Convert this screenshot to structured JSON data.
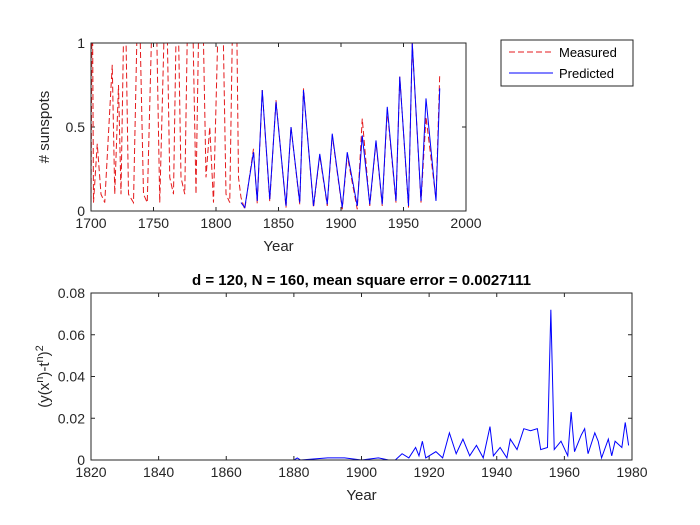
{
  "chart_data": [
    {
      "type": "line",
      "xlabel": "Year",
      "ylabel": [
        {
          "text": "# sunspots"
        }
      ],
      "xlim": [
        1700,
        2000
      ],
      "xticks": [
        1700,
        1750,
        1800,
        1850,
        1900,
        1950,
        2000
      ],
      "ylim": [
        0,
        1
      ],
      "yticks": [
        0,
        0.5,
        1
      ],
      "legend": "outside-top-right",
      "series": [
        {
          "name": "Measured",
          "color": "#e41a1c",
          "dash": true,
          "x": [
            1700,
            1701,
            1702,
            1705,
            1708,
            1711,
            1715,
            1717,
            1719,
            1722,
            1724,
            1727,
            1730,
            1734,
            1738,
            1742,
            1745,
            1750,
            1752,
            1755,
            1760,
            1763,
            1766,
            1769,
            1772,
            1775,
            1778,
            1781,
            1784,
            1787,
            1789,
            1792,
            1795,
            1798,
            1803,
            1805,
            1808,
            1811,
            1814,
            1816,
            1818,
            1820,
            1823,
            1830,
            1833,
            1837,
            1843,
            1848,
            1856,
            1860,
            1867,
            1870,
            1878,
            1883,
            1889,
            1893,
            1901,
            1905,
            1913,
            1917,
            1923,
            1928,
            1933,
            1937,
            1944,
            1947,
            1954,
            1957,
            1964,
            1968,
            1976,
            1979
          ],
          "values": [
            0,
            1.5,
            0.05,
            0.4,
            0.1,
            0.05,
            0.6,
            0.87,
            0.1,
            0.75,
            0.1,
            1.5,
            0.1,
            0.05,
            1.5,
            0.1,
            0.05,
            1.5,
            1.3,
            0.05,
            1.5,
            0.2,
            0.1,
            1.5,
            0.2,
            0.1,
            1.5,
            1.3,
            0.1,
            1.5,
            1.4,
            0.2,
            0.5,
            0.05,
            1.5,
            1.4,
            0.1,
            0.05,
            1.5,
            1.5,
            0.2,
            0.08,
            0.01,
            0.37,
            0.045,
            0.72,
            0.056,
            0.66,
            0.02,
            0.5,
            0.04,
            0.73,
            0.02,
            0.33,
            0.03,
            0.45,
            0.01,
            0.33,
            0.01,
            0.55,
            0.03,
            0.41,
            0.03,
            0.6,
            0.05,
            0.8,
            0.02,
            1,
            0.05,
            0.56,
            0.07,
            0.82
          ]
        },
        {
          "name": "Predicted",
          "color": "#0000ff",
          "dash": false,
          "x": [
            1820,
            1823,
            1830,
            1833,
            1837,
            1843,
            1848,
            1856,
            1860,
            1867,
            1870,
            1878,
            1883,
            1889,
            1893,
            1901,
            1905,
            1913,
            1917,
            1923,
            1928,
            1933,
            1937,
            1944,
            1947,
            1954,
            1957,
            1964,
            1968,
            1976,
            1979
          ],
          "values": [
            0.05,
            0.02,
            0.35,
            0.06,
            0.72,
            0.07,
            0.65,
            0.03,
            0.5,
            0.05,
            0.72,
            0.03,
            0.34,
            0.04,
            0.46,
            0.02,
            0.35,
            0.03,
            0.45,
            0.04,
            0.42,
            0.04,
            0.62,
            0.06,
            0.8,
            0.03,
            1,
            0.06,
            0.67,
            0.06,
            0.73
          ]
        }
      ]
    },
    {
      "type": "line",
      "title": "d = 120,  N = 160,  mean square error = 0.0027111",
      "xlabel": "Year",
      "ylabel": [
        {
          "text": "(y(x"
        },
        {
          "text": "n",
          "sup": true
        },
        {
          "text": ")-t"
        },
        {
          "text": "n",
          "sup": true
        },
        {
          "text": ")"
        },
        {
          "text": "2",
          "sup": true
        }
      ],
      "xlim": [
        1820,
        1980
      ],
      "xticks": [
        1820,
        1840,
        1860,
        1880,
        1900,
        1920,
        1940,
        1960,
        1980
      ],
      "ylim": [
        0,
        0.08
      ],
      "yticks": [
        0,
        0.02,
        0.04,
        0.06,
        0.08
      ],
      "series": [
        {
          "color": "#0000ff",
          "dash": false,
          "x": [
            1820,
            1850,
            1880,
            1881,
            1882,
            1890,
            1895,
            1900,
            1905,
            1908,
            1910,
            1912,
            1914,
            1916,
            1917,
            1918,
            1919,
            1922,
            1924,
            1926,
            1928,
            1930,
            1932,
            1934,
            1936,
            1938,
            1939,
            1941,
            1943,
            1944,
            1946,
            1948,
            1950,
            1952,
            1953,
            1955,
            1956,
            1957,
            1959,
            1961,
            1962,
            1963,
            1965,
            1966,
            1967,
            1969,
            1970,
            1971,
            1973,
            1974,
            1975,
            1977,
            1978,
            1979
          ],
          "values": [
            0,
            0,
            0,
            0.001,
            0,
            0.001,
            0.001,
            0,
            0.001,
            0,
            0,
            0.003,
            0.001,
            0.006,
            0.002,
            0.009,
            0.001,
            0.004,
            0.001,
            0.013,
            0.003,
            0.01,
            0.002,
            0.007,
            0.001,
            0.016,
            0.002,
            0.006,
            0.001,
            0.01,
            0.005,
            0.015,
            0.014,
            0.015,
            0.005,
            0.006,
            0.072,
            0.005,
            0.009,
            0.002,
            0.023,
            0.004,
            0.012,
            0.015,
            0.003,
            0.013,
            0.009,
            0.001,
            0.01,
            0.002,
            0.009,
            0.006,
            0.018,
            0.007
          ]
        }
      ]
    }
  ]
}
